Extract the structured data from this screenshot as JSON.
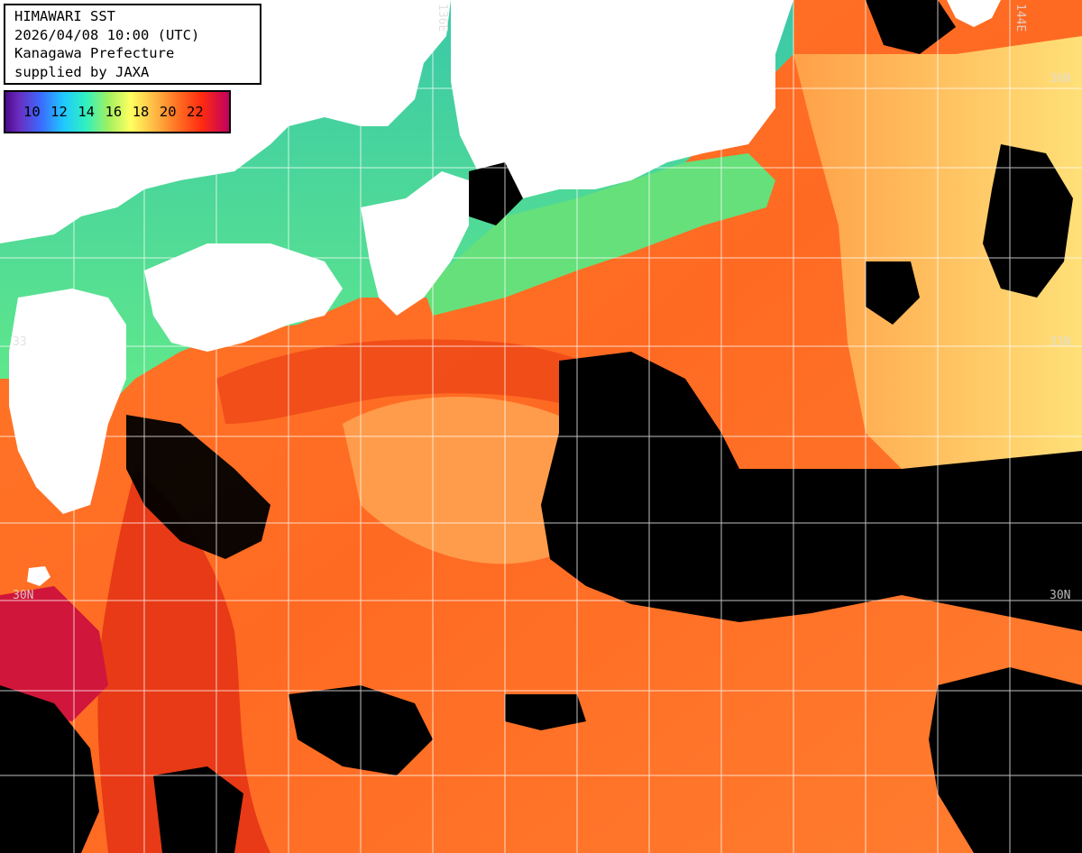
{
  "header": {
    "line1": "HIMAWARI SST",
    "line2": "2026/04/08 10:00 (UTC)",
    "line3": "Kanagawa Prefecture",
    "line4": "supplied by JAXA"
  },
  "legend": {
    "ticks": [
      "10",
      "12",
      "14",
      "16",
      "18",
      "20",
      "22"
    ]
  },
  "grid_labels": {
    "lon_136": "136E",
    "lon_144": "144E",
    "lat_36": "36N",
    "lat_33_left": "33",
    "lat_33_right": "33N",
    "lat_30_left": "30N",
    "lat_30_right": "30N"
  },
  "colors": {
    "land": "#ffffff",
    "cloud": "#000000",
    "cool_coast": "#50e890",
    "warm_core": "#ff5a18",
    "kuroshio": "#e82818",
    "grid": "#ffffff"
  }
}
